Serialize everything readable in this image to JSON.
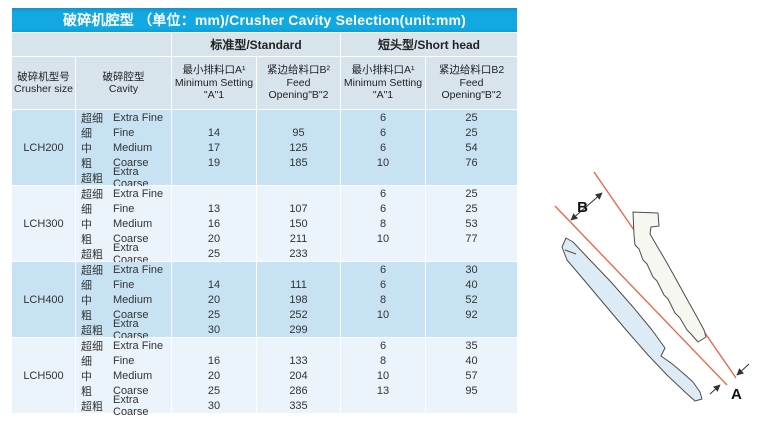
{
  "title": "破碎机腔型 （单位：mm)/Crusher Cavity Selection(unit:mm)",
  "band": {
    "standard": "标准型/Standard",
    "short_head": "短头型/Short head"
  },
  "columns": [
    {
      "zh": "破碎机型号",
      "en": "Crusher size"
    },
    {
      "zh": "破碎腔型",
      "en": "Cavity"
    },
    {
      "zh": "最小排料口A¹",
      "en1": "Minimum Setting",
      "en2": "\"A\"1"
    },
    {
      "zh": "紧边给料口B²",
      "en1": "Feed",
      "en2": "Opening\"B\"2"
    },
    {
      "zh": "最小排料口A¹",
      "en1": "Minimum Setting",
      "en2": "\"A\"1"
    },
    {
      "zh": "紧边给料口B2",
      "en1": "Feed",
      "en2": "Opening\"B\"2"
    }
  ],
  "groups": [
    {
      "model": "LCH200",
      "rows": [
        {
          "zh": "超细",
          "en": "Extra Fine",
          "std_a": "",
          "std_b": "",
          "sh_a": "6",
          "sh_b": "25"
        },
        {
          "zh": "细",
          "en": "Fine",
          "std_a": "14",
          "std_b": "95",
          "sh_a": "6",
          "sh_b": "25"
        },
        {
          "zh": "中",
          "en": "Medium",
          "std_a": "17",
          "std_b": "125",
          "sh_a": "6",
          "sh_b": "54"
        },
        {
          "zh": "粗",
          "en": "Coarse",
          "std_a": "19",
          "std_b": "185",
          "sh_a": "10",
          "sh_b": "76"
        },
        {
          "zh": "超粗",
          "en": "Extra Coarse",
          "std_a": "",
          "std_b": "",
          "sh_a": "",
          "sh_b": ""
        }
      ]
    },
    {
      "model": "LCH300",
      "rows": [
        {
          "zh": "超细",
          "en": "Extra Fine",
          "std_a": "",
          "std_b": "",
          "sh_a": "6",
          "sh_b": "25"
        },
        {
          "zh": "细",
          "en": "Fine",
          "std_a": "13",
          "std_b": "107",
          "sh_a": "6",
          "sh_b": "25"
        },
        {
          "zh": "中",
          "en": "Medium",
          "std_a": "16",
          "std_b": "150",
          "sh_a": "8",
          "sh_b": "53"
        },
        {
          "zh": "粗",
          "en": "Coarse",
          "std_a": "20",
          "std_b": "211",
          "sh_a": "10",
          "sh_b": "77"
        },
        {
          "zh": "超粗",
          "en": "Extra Coarse",
          "std_a": "25",
          "std_b": "233",
          "sh_a": "",
          "sh_b": ""
        }
      ]
    },
    {
      "model": "LCH400",
      "rows": [
        {
          "zh": "超细",
          "en": "Extra Fine",
          "std_a": "",
          "std_b": "",
          "sh_a": "6",
          "sh_b": "30"
        },
        {
          "zh": "细",
          "en": "Fine",
          "std_a": "14",
          "std_b": "111",
          "sh_a": "6",
          "sh_b": "40"
        },
        {
          "zh": "中",
          "en": "Medium",
          "std_a": "20",
          "std_b": "198",
          "sh_a": "8",
          "sh_b": "52"
        },
        {
          "zh": "粗",
          "en": "Coarse",
          "std_a": "25",
          "std_b": "252",
          "sh_a": "10",
          "sh_b": "92"
        },
        {
          "zh": "超粗",
          "en": "Extra Coarse",
          "std_a": "30",
          "std_b": "299",
          "sh_a": "",
          "sh_b": ""
        }
      ]
    },
    {
      "model": "LCH500",
      "rows": [
        {
          "zh": "超细",
          "en": "Extra Fine",
          "std_a": "",
          "std_b": "",
          "sh_a": "6",
          "sh_b": "35"
        },
        {
          "zh": "细",
          "en": "Fine",
          "std_a": "16",
          "std_b": "133",
          "sh_a": "8",
          "sh_b": "40"
        },
        {
          "zh": "中",
          "en": "Medium",
          "std_a": "20",
          "std_b": "204",
          "sh_a": "10",
          "sh_b": "57"
        },
        {
          "zh": "粗",
          "en": "Coarse",
          "std_a": "25",
          "std_b": "286",
          "sh_a": "13",
          "sh_b": "95"
        },
        {
          "zh": "超粗",
          "en": "Extra Coarse",
          "std_a": "30",
          "std_b": "335",
          "sh_a": "",
          "sh_b": ""
        }
      ]
    }
  ],
  "diagram": {
    "label_a": "A",
    "label_b": "B"
  },
  "colors": {
    "title_bar": "#12a9e2",
    "header_bg": "#d7e4ec",
    "group_blue": "#c7e3f3",
    "group_light": "#eaf4fa",
    "dimension_line": "#f2603f",
    "mantle_fill": "#dcebf5",
    "concave_fill": "#f7f7f2",
    "outline": "#4d4d4d"
  }
}
